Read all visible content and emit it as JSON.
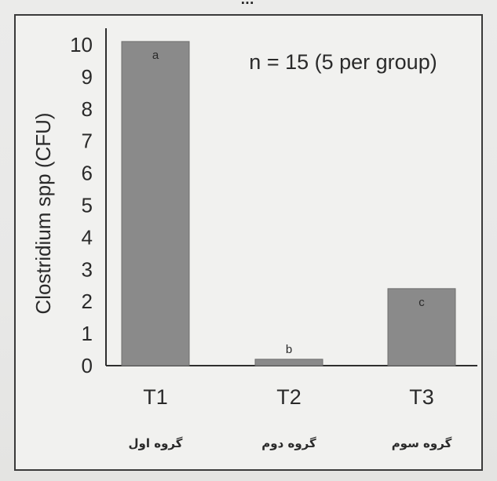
{
  "page": {
    "top_caption": "..."
  },
  "chart_data": {
    "type": "bar",
    "title": "",
    "annotation": "n = 15 (5 per group)",
    "xlabel": "",
    "ylabel": "Clostridium spp (CFU)",
    "ylim": [
      0,
      10
    ],
    "yticks": [
      "0",
      "1",
      "2",
      "3",
      "4",
      "5",
      "6",
      "7",
      "8",
      "9",
      "10"
    ],
    "categories": [
      "T1",
      "T2",
      "T3"
    ],
    "category_sublabels": [
      "گروه اول",
      "گروه دوم",
      "گروه سوم"
    ],
    "values": [
      10.1,
      0.2,
      2.4
    ],
    "bar_letters": [
      "a",
      "b",
      "c"
    ],
    "grid": false,
    "colors": {
      "bar": "#8a8a8a",
      "bar_edge": "#6e6e6e",
      "axis": "#2e2e2e",
      "text": "#2a2a2a"
    }
  }
}
